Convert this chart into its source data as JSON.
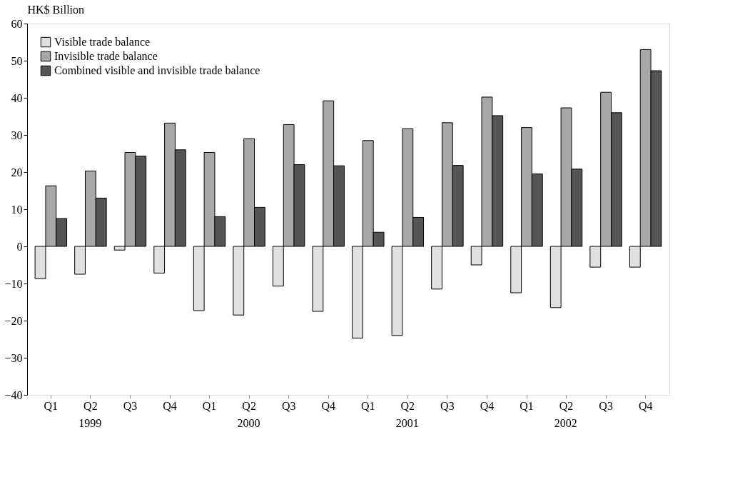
{
  "chart_data": {
    "type": "bar",
    "ylabel": "HK$ Billion",
    "categories": [
      "Q1",
      "Q2",
      "Q3",
      "Q4",
      "Q1",
      "Q2",
      "Q3",
      "Q4",
      "Q1",
      "Q2",
      "Q3",
      "Q4",
      "Q1",
      "Q2",
      "Q3",
      "Q4"
    ],
    "annotations": [
      "1999",
      "2000",
      "2001",
      "2002"
    ],
    "series": [
      {
        "name": "Visible trade balance",
        "color": "#e0e0e0",
        "values": [
          -8.7,
          -7.5,
          -1,
          -7.2,
          -17.3,
          -18.5,
          -10.7,
          -17.5,
          -24.7,
          -24,
          -11.5,
          -5,
          -12.5,
          -16.5,
          -5.6,
          -5.6
        ]
      },
      {
        "name": "Invisible trade balance",
        "color": "#a8a8a8",
        "values": [
          16.3,
          20.3,
          25.3,
          33.2,
          25.3,
          29,
          32.8,
          39.2,
          28.5,
          31.7,
          33.3,
          40.2,
          32,
          37.3,
          41.5,
          53
        ]
      },
      {
        "name": "Combined visible and invisible trade balance",
        "color": "#555555",
        "values": [
          7.5,
          13,
          24.3,
          26,
          8,
          10.5,
          22,
          21.7,
          3.8,
          7.8,
          21.8,
          35.2,
          19.5,
          20.8,
          36,
          47.3
        ]
      }
    ],
    "ylim": [
      -40,
      60
    ],
    "yticks": [
      -40,
      -30,
      -20,
      -10,
      0,
      10,
      20,
      30,
      40,
      50,
      60
    ],
    "grid": false,
    "legend": "top left"
  }
}
